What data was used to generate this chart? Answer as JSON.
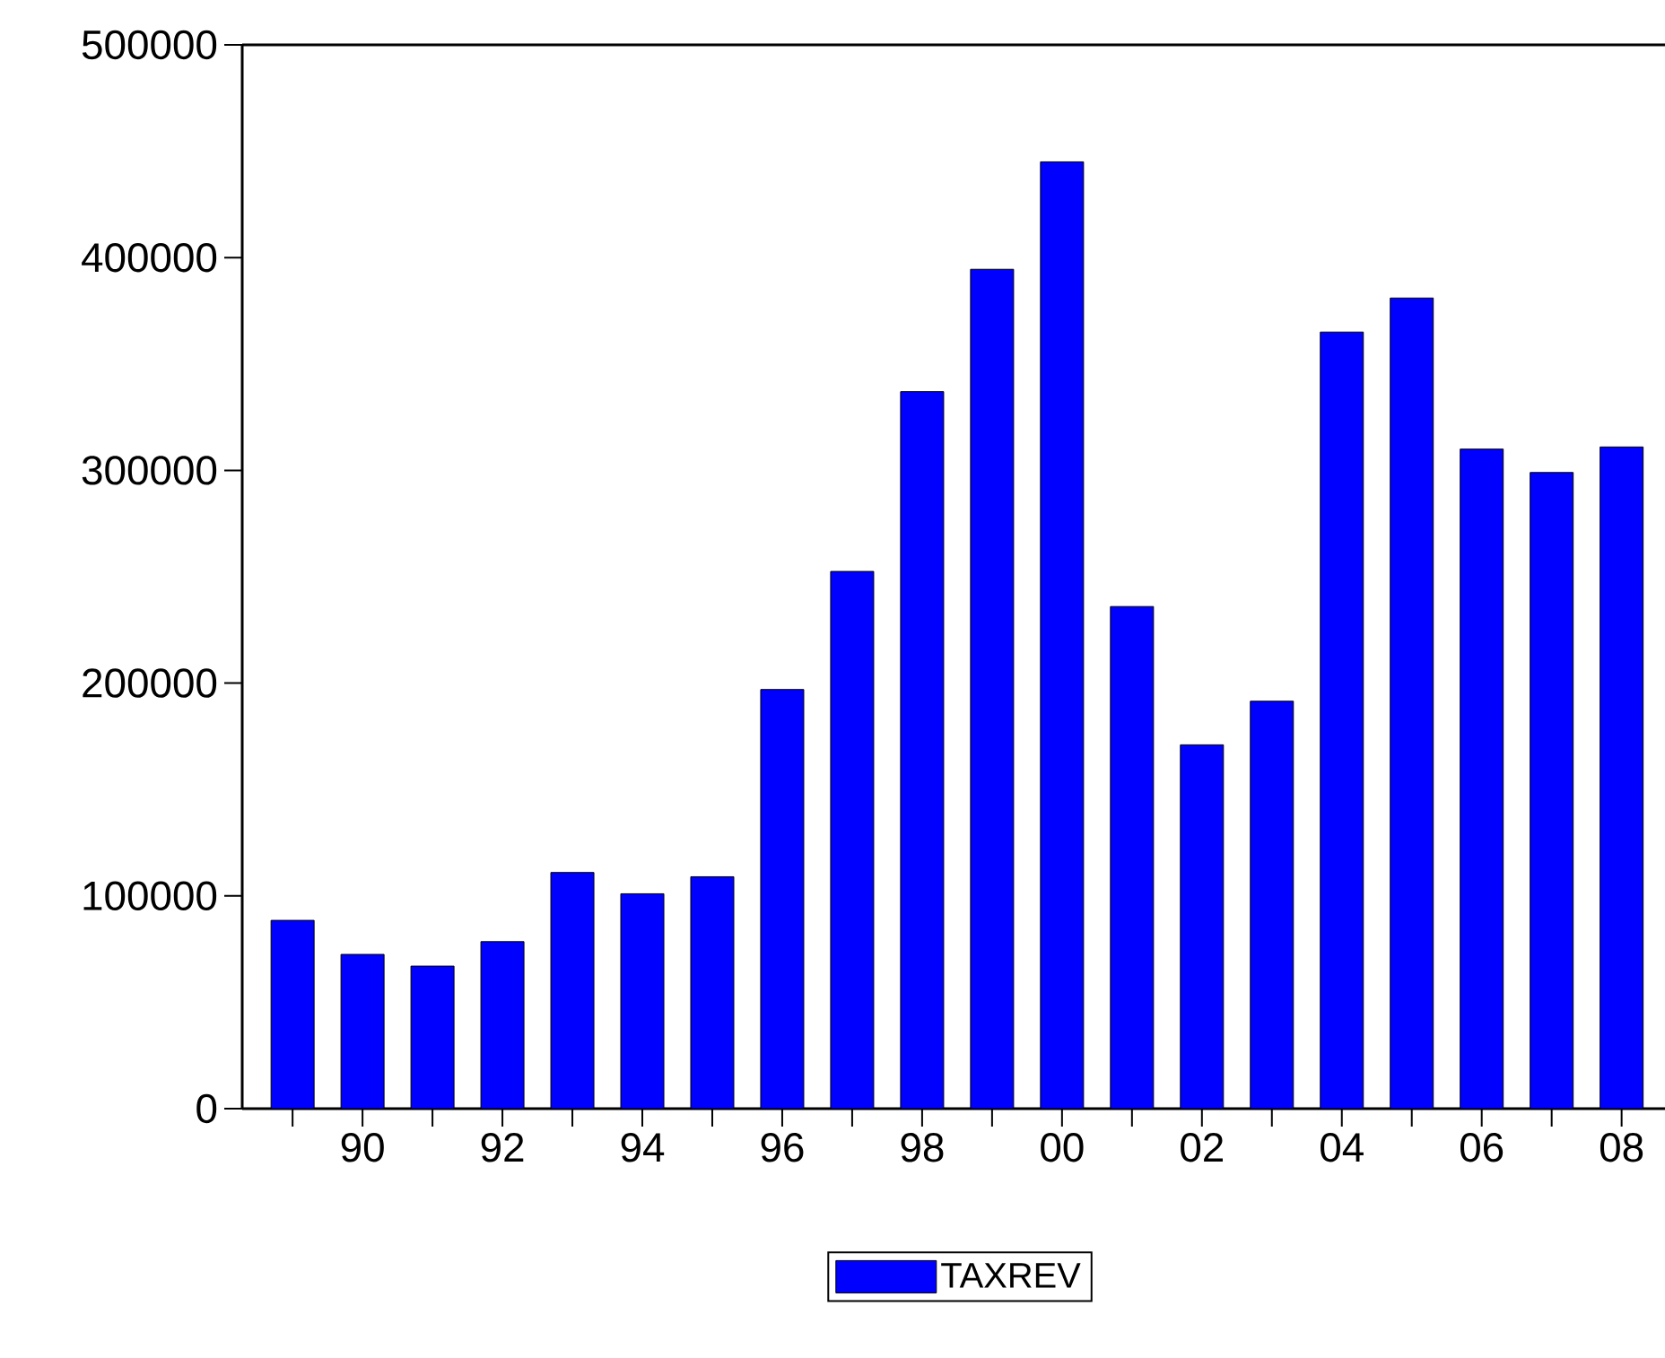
{
  "chart_data": {
    "type": "bar",
    "categories": [
      null,
      "90",
      null,
      "92",
      null,
      "94",
      null,
      "96",
      null,
      "98",
      null,
      "00",
      null,
      "02",
      null,
      "04",
      null,
      "06",
      null,
      "08"
    ],
    "series": [
      {
        "name": "TAXREV",
        "color": "#0000ff",
        "values": [
          88500,
          72500,
          67000,
          78500,
          111000,
          101000,
          109000,
          197000,
          252500,
          337000,
          394500,
          445000,
          236000,
          171000,
          191500,
          365000,
          381000,
          310000,
          299000,
          311000
        ]
      }
    ],
    "ylim": [
      0,
      500000
    ],
    "yticks": [
      0,
      100000,
      200000,
      300000,
      400000,
      500000
    ],
    "grid": false,
    "legend": "bottom"
  }
}
